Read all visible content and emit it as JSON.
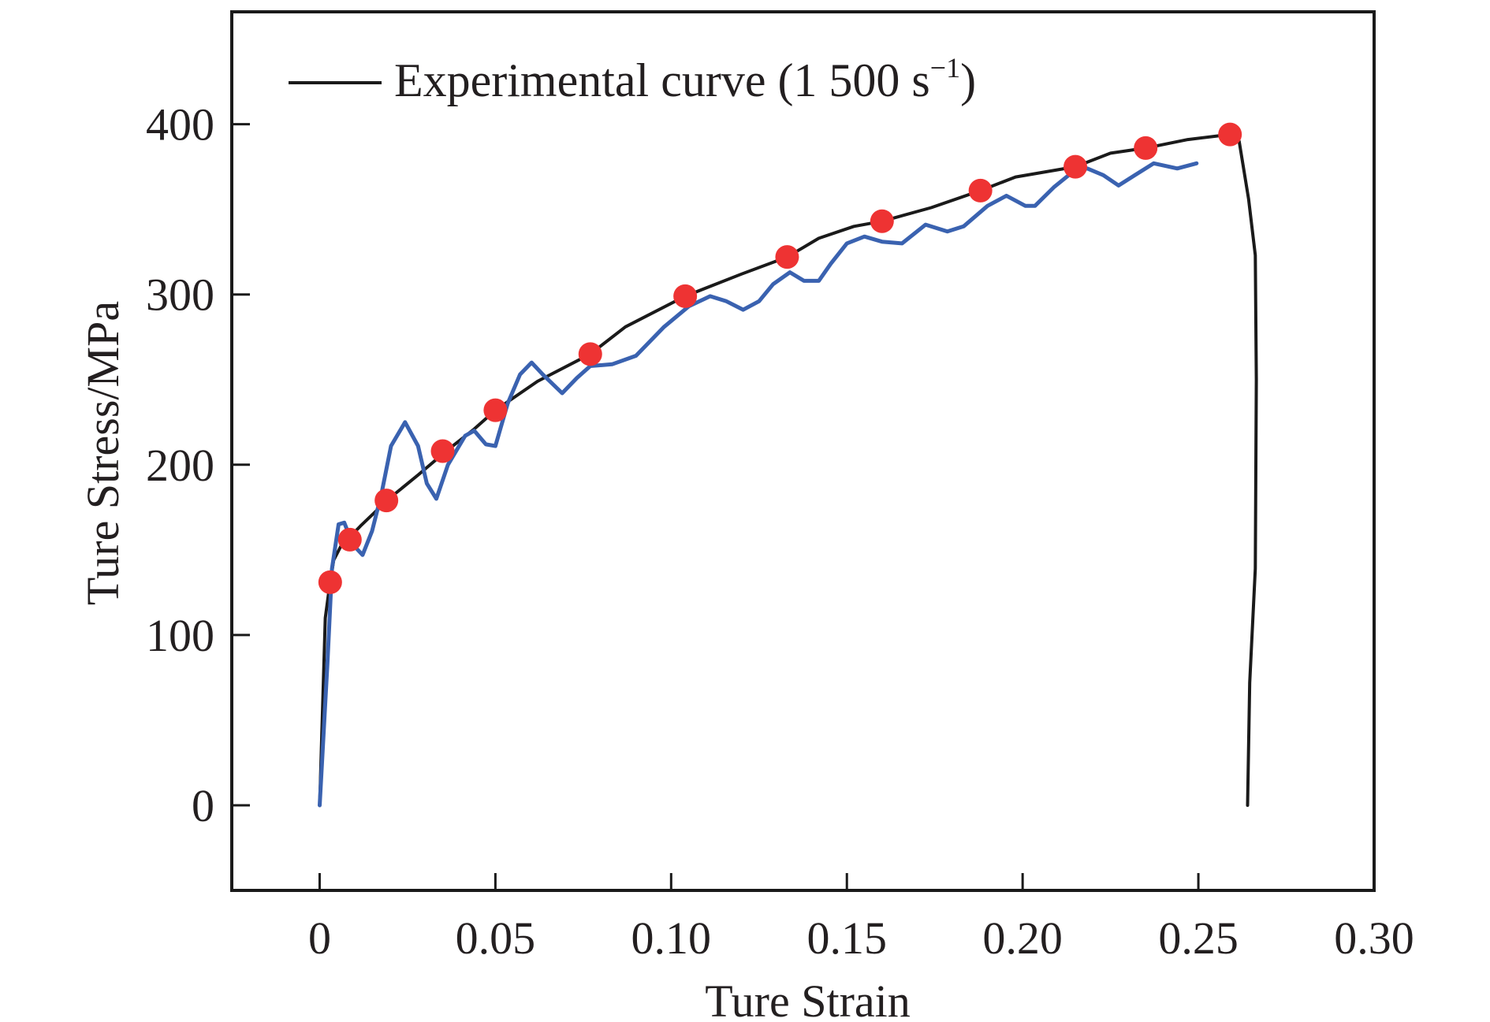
{
  "chart_data": {
    "type": "line",
    "title": "",
    "xlabel": "Ture Strain",
    "ylabel": "Ture Stress/MPa",
    "xlim": [
      -0.025,
      0.3
    ],
    "ylim": [
      -50,
      466
    ],
    "x_ticks": [
      0,
      0.05,
      0.1,
      0.15,
      0.2,
      0.25,
      0.3
    ],
    "x_tick_labels": [
      "0",
      "0.05",
      "0.10",
      "0.15",
      "0.20",
      "0.25",
      "0.30"
    ],
    "y_ticks": [
      0,
      100,
      200,
      300,
      400
    ],
    "y_tick_labels": [
      "0",
      "100",
      "200",
      "300",
      "400"
    ],
    "grid": false,
    "legend": {
      "position": "top-left",
      "entries": [
        {
          "label": "Experimental curve (1 500 s",
          "superscript": "−1",
          "suffix": ")",
          "series": "experimental"
        }
      ]
    },
    "series": [
      {
        "name": "experimental",
        "label": "Experimental curve (1 500 s⁻¹)",
        "style": "line",
        "color": "#1a1a1a",
        "x": [
          0,
          0.0016,
          0.0027,
          0.004,
          0.006,
          0.0116,
          0.0197,
          0.028,
          0.036,
          0.044,
          0.05,
          0.062,
          0.077,
          0.087,
          0.104,
          0.12,
          0.133,
          0.142,
          0.152,
          0.16,
          0.174,
          0.188,
          0.198,
          0.215,
          0.225,
          0.235,
          0.247,
          0.259,
          0.2616,
          0.2643,
          0.2662,
          0.2665,
          0.2662,
          0.2646,
          0.264
        ],
        "y": [
          0,
          110,
          127,
          144,
          152,
          164,
          180,
          194,
          208,
          221,
          232,
          249,
          265,
          281,
          299,
          312,
          322,
          333,
          340,
          343,
          351,
          361,
          369,
          375,
          383,
          386,
          391,
          394,
          390,
          356,
          323,
          250,
          139,
          72,
          0
        ]
      },
      {
        "name": "simulation",
        "label": "",
        "style": "line",
        "color": "#3a62b0",
        "x": [
          0,
          0.0022,
          0.0035,
          0.0054,
          0.007,
          0.0095,
          0.0122,
          0.0149,
          0.0176,
          0.0203,
          0.0243,
          0.028,
          0.0305,
          0.0332,
          0.0365,
          0.0414,
          0.044,
          0.0473,
          0.05,
          0.0535,
          0.057,
          0.0603,
          0.0635,
          0.069,
          0.0732,
          0.077,
          0.0832,
          0.09,
          0.098,
          0.105,
          0.1111,
          0.1157,
          0.1205,
          0.125,
          0.129,
          0.1338,
          0.1378,
          0.142,
          0.1454,
          0.15,
          0.155,
          0.16,
          0.1657,
          0.1724,
          0.1786,
          0.1832,
          0.19,
          0.1954,
          0.2008,
          0.2035,
          0.2089,
          0.2143,
          0.2184,
          0.223,
          0.2273,
          0.2319,
          0.2373,
          0.244,
          0.2495
        ],
        "y": [
          0,
          83,
          139,
          165,
          166,
          153,
          147,
          161,
          183,
          211,
          225,
          211,
          189,
          180,
          200,
          217,
          220,
          212,
          211,
          236,
          253,
          260,
          253,
          242,
          251,
          258,
          259,
          264,
          281,
          293,
          299,
          296,
          291,
          296,
          306,
          313,
          308,
          308,
          318,
          330,
          334,
          331,
          330,
          341,
          337,
          340,
          352,
          358,
          352,
          352,
          363,
          372,
          374,
          370,
          364,
          370,
          377,
          374,
          377
        ]
      },
      {
        "name": "model-points",
        "label": "",
        "style": "scatter",
        "color": "#ee3333",
        "x": [
          0.003,
          0.0086,
          0.019,
          0.035,
          0.05,
          0.077,
          0.104,
          0.133,
          0.16,
          0.188,
          0.215,
          0.235,
          0.259
        ],
        "y": [
          131,
          156,
          179,
          208,
          232,
          265,
          299,
          322,
          343,
          361,
          375,
          386,
          394
        ]
      }
    ]
  }
}
